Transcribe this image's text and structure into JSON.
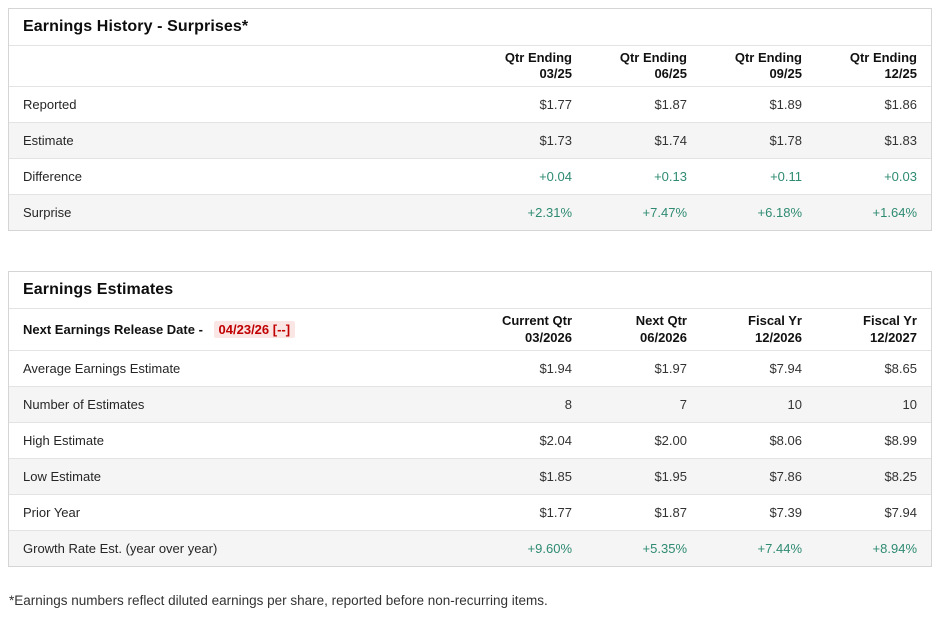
{
  "colors": {
    "positive_green": "#2e8b72",
    "alert_red": "#c00000",
    "alert_red_bg": "#fbe6e6",
    "row_alt_bg": "#f5f5f5",
    "border": "#d5d5d5"
  },
  "history": {
    "title": "Earnings History - Surprises*",
    "columns": [
      {
        "line1": "Qtr Ending",
        "line2": "03/25"
      },
      {
        "line1": "Qtr Ending",
        "line2": "06/25"
      },
      {
        "line1": "Qtr Ending",
        "line2": "09/25"
      },
      {
        "line1": "Qtr Ending",
        "line2": "12/25"
      }
    ],
    "rows": [
      {
        "label": "Reported",
        "values": [
          "$1.77",
          "$1.87",
          "$1.89",
          "$1.86"
        ]
      },
      {
        "label": "Estimate",
        "values": [
          "$1.73",
          "$1.74",
          "$1.78",
          "$1.83"
        ]
      },
      {
        "label": "Difference",
        "values": [
          "+0.04",
          "+0.13",
          "+0.11",
          "+0.03"
        ]
      },
      {
        "label": "Surprise",
        "values": [
          "+2.31%",
          "+7.47%",
          "+6.18%",
          "+1.64%"
        ]
      }
    ]
  },
  "estimates": {
    "title": "Earnings Estimates",
    "release_label": "Next Earnings Release Date -",
    "release_date": "04/23/26 [--]",
    "columns": [
      {
        "line1": "Current Qtr",
        "line2": "03/2026"
      },
      {
        "line1": "Next Qtr",
        "line2": "06/2026"
      },
      {
        "line1": "Fiscal Yr",
        "line2": "12/2026"
      },
      {
        "line1": "Fiscal Yr",
        "line2": "12/2027"
      }
    ],
    "rows": [
      {
        "label": "Average Earnings Estimate",
        "values": [
          "$1.94",
          "$1.97",
          "$7.94",
          "$8.65"
        ]
      },
      {
        "label": "Number of Estimates",
        "values": [
          "8",
          "7",
          "10",
          "10"
        ]
      },
      {
        "label": "High Estimate",
        "values": [
          "$2.04",
          "$2.00",
          "$8.06",
          "$8.99"
        ]
      },
      {
        "label": "Low Estimate",
        "values": [
          "$1.85",
          "$1.95",
          "$7.86",
          "$8.25"
        ]
      },
      {
        "label": "Prior Year",
        "values": [
          "$1.77",
          "$1.87",
          "$7.39",
          "$7.94"
        ]
      },
      {
        "label": "Growth Rate Est. (year over year)",
        "values": [
          "+9.60%",
          "+5.35%",
          "+7.44%",
          "+8.94%"
        ]
      }
    ]
  },
  "footnote": "*Earnings numbers reflect diluted earnings per share, reported before non-recurring items."
}
